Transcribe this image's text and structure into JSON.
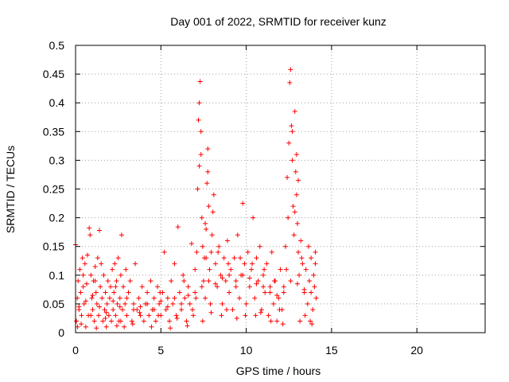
{
  "chart_data": {
    "type": "scatter",
    "title": "Day 001 of 2022, SRMTID for receiver kunz",
    "xlabel": "GPS time / hours",
    "ylabel": "SRMTID / TECUs",
    "xlim": [
      0,
      24
    ],
    "ylim": [
      0,
      0.5
    ],
    "xticks": [
      0,
      5,
      10,
      15,
      20
    ],
    "xtick_labels": [
      "0",
      "5",
      "10",
      "15",
      "20"
    ],
    "yticks": [
      0,
      0.05,
      0.1,
      0.15,
      0.2,
      0.25,
      0.3,
      0.35,
      0.4,
      0.45,
      0.5
    ],
    "ytick_labels": [
      "0",
      "0.05",
      "0.1",
      "0.15",
      "0.2",
      "0.25",
      "0.3",
      "0.35",
      "0.4",
      "0.45",
      "0.5"
    ],
    "grid": true,
    "marker": "+",
    "color": "#ff0000",
    "series": [
      {
        "name": "SRMTID",
        "points": [
          [
            0.0,
            0.153
          ],
          [
            0.05,
            0.02
          ],
          [
            0.1,
            0.06
          ],
          [
            0.15,
            0.09
          ],
          [
            0.2,
            0.04
          ],
          [
            0.25,
            0.11
          ],
          [
            0.3,
            0.07
          ],
          [
            0.35,
            0.03
          ],
          [
            0.4,
            0.13
          ],
          [
            0.45,
            0.08
          ],
          [
            0.5,
            0.05
          ],
          [
            0.55,
            0.12
          ],
          [
            0.6,
            0.01
          ],
          [
            0.65,
            0.085
          ],
          [
            0.7,
            0.135
          ],
          [
            0.75,
            0.03
          ],
          [
            0.8,
            0.182
          ],
          [
            0.85,
            0.17
          ],
          [
            0.9,
            0.1
          ],
          [
            0.95,
            0.06
          ],
          [
            1.0,
            0.04
          ],
          [
            1.05,
            0.09
          ],
          [
            1.1,
            0.02
          ],
          [
            1.15,
            0.115
          ],
          [
            1.2,
            0.07
          ],
          [
            1.25,
            0.05
          ],
          [
            1.3,
            0.13
          ],
          [
            1.35,
            0.03
          ],
          [
            1.4,
            0.178
          ],
          [
            1.45,
            0.08
          ],
          [
            1.5,
            0.12
          ],
          [
            1.55,
            0.06
          ],
          [
            1.6,
            0.02
          ],
          [
            1.65,
            0.1
          ],
          [
            1.7,
            0.04
          ],
          [
            1.75,
            0.07
          ],
          [
            1.8,
            0.01
          ],
          [
            1.85,
            0.05
          ],
          [
            1.9,
            0.09
          ],
          [
            1.95,
            0.03
          ],
          [
            2.0,
            0.06
          ],
          [
            2.05,
            0.08
          ],
          [
            2.1,
            0.02
          ],
          [
            2.15,
            0.11
          ],
          [
            2.2,
            0.04
          ],
          [
            2.25,
            0.07
          ],
          [
            2.3,
            0.12
          ],
          [
            2.35,
            0.03
          ],
          [
            2.4,
            0.09
          ],
          [
            2.45,
            0.05
          ],
          [
            2.5,
            0.13
          ],
          [
            2.55,
            0.02
          ],
          [
            2.6,
            0.06
          ],
          [
            2.65,
            0.1
          ],
          [
            2.7,
            0.17
          ],
          [
            2.75,
            0.04
          ],
          [
            2.8,
            0.08
          ],
          [
            2.85,
            0.01
          ],
          [
            2.9,
            0.05
          ],
          [
            2.95,
            0.11
          ],
          [
            3.0,
            0.03
          ],
          [
            3.1,
            0.07
          ],
          [
            3.2,
            0.09
          ],
          [
            3.3,
            0.02
          ],
          [
            3.4,
            0.05
          ],
          [
            3.5,
            0.12
          ],
          [
            3.6,
            0.04
          ],
          [
            3.7,
            0.06
          ],
          [
            3.8,
            0.03
          ],
          [
            3.9,
            0.08
          ],
          [
            4.0,
            0.02
          ],
          [
            4.1,
            0.05
          ],
          [
            4.2,
            0.07
          ],
          [
            4.3,
            0.03
          ],
          [
            4.4,
            0.09
          ],
          [
            4.5,
            0.04
          ],
          [
            4.6,
            0.06
          ],
          [
            4.7,
            0.02
          ],
          [
            4.8,
            0.08
          ],
          [
            4.9,
            0.05
          ],
          [
            5.0,
            0.03
          ],
          [
            5.1,
            0.07
          ],
          [
            5.2,
            0.14
          ],
          [
            5.3,
            0.04
          ],
          [
            5.4,
            0.06
          ],
          [
            5.5,
            0.02
          ],
          [
            5.6,
            0.09
          ],
          [
            5.7,
            0.05
          ],
          [
            5.8,
            0.12
          ],
          [
            5.9,
            0.03
          ],
          [
            6.0,
            0.184
          ],
          [
            6.1,
            0.07
          ],
          [
            6.2,
            0.04
          ],
          [
            6.3,
            0.1
          ],
          [
            6.4,
            0.06
          ],
          [
            6.5,
            0.02
          ],
          [
            6.6,
            0.08
          ],
          [
            6.7,
            0.05
          ],
          [
            6.8,
            0.155
          ],
          [
            6.9,
            0.03
          ],
          [
            7.0,
            0.11
          ],
          [
            7.05,
            0.06
          ],
          [
            7.1,
            0.14
          ],
          [
            7.15,
            0.25
          ],
          [
            7.2,
            0.37
          ],
          [
            7.25,
            0.4
          ],
          [
            7.3,
            0.437
          ],
          [
            7.35,
            0.31
          ],
          [
            7.4,
            0.2
          ],
          [
            7.45,
            0.15
          ],
          [
            7.5,
            0.09
          ],
          [
            7.55,
            0.13
          ],
          [
            7.6,
            0.06
          ],
          [
            7.65,
            0.18
          ],
          [
            7.7,
            0.26
          ],
          [
            7.75,
            0.32
          ],
          [
            7.8,
            0.22
          ],
          [
            7.85,
            0.11
          ],
          [
            7.9,
            0.05
          ],
          [
            7.95,
            0.14
          ],
          [
            8.0,
            0.17
          ],
          [
            8.05,
            0.21
          ],
          [
            8.1,
            0.24
          ],
          [
            8.2,
            0.12
          ],
          [
            8.3,
            0.08
          ],
          [
            8.4,
            0.15
          ],
          [
            8.5,
            0.1
          ],
          [
            8.6,
            0.05
          ],
          [
            8.7,
            0.13
          ],
          [
            8.8,
            0.09
          ],
          [
            8.9,
            0.16
          ],
          [
            9.0,
            0.07
          ],
          [
            9.1,
            0.11
          ],
          [
            9.2,
            0.04
          ],
          [
            9.3,
            0.13
          ],
          [
            9.4,
            0.08
          ],
          [
            9.5,
            0.17
          ],
          [
            9.6,
            0.06
          ],
          [
            9.7,
            0.1
          ],
          [
            9.8,
            0.225
          ],
          [
            9.9,
            0.12
          ],
          [
            10.0,
            0.05
          ],
          [
            10.1,
            0.14
          ],
          [
            10.2,
            0.08
          ],
          [
            10.3,
            0.11
          ],
          [
            10.4,
            0.2
          ],
          [
            10.5,
            0.06
          ],
          [
            10.6,
            0.13
          ],
          [
            10.7,
            0.09
          ],
          [
            10.8,
            0.15
          ],
          [
            10.9,
            0.04
          ],
          [
            11.0,
            0.1
          ],
          [
            11.1,
            0.07
          ],
          [
            11.2,
            0.12
          ],
          [
            11.3,
            0.03
          ],
          [
            11.4,
            0.08
          ],
          [
            11.5,
            0.14
          ],
          [
            11.6,
            0.05
          ],
          [
            11.7,
            0.09
          ],
          [
            11.8,
            0.02
          ],
          [
            11.9,
            0.06
          ],
          [
            12.0,
            0.11
          ],
          [
            12.1,
            0.04
          ],
          [
            12.2,
            0.08
          ],
          [
            12.3,
            0.15
          ],
          [
            12.4,
            0.27
          ],
          [
            12.5,
            0.33
          ],
          [
            12.55,
            0.435
          ],
          [
            12.6,
            0.458
          ],
          [
            12.65,
            0.36
          ],
          [
            12.7,
            0.3
          ],
          [
            12.75,
            0.22
          ],
          [
            12.8,
            0.17
          ],
          [
            12.85,
            0.385
          ],
          [
            12.9,
            0.28
          ],
          [
            12.95,
            0.24
          ],
          [
            13.0,
            0.19
          ],
          [
            13.05,
            0.14
          ],
          [
            13.1,
            0.1
          ],
          [
            13.2,
            0.16
          ],
          [
            13.3,
            0.12
          ],
          [
            13.4,
            0.07
          ],
          [
            13.5,
            0.11
          ],
          [
            13.6,
            0.05
          ],
          [
            13.7,
            0.09
          ],
          [
            13.8,
            0.13
          ],
          [
            13.9,
            0.04
          ],
          [
            14.0,
            0.08
          ],
          [
            14.05,
            0.14
          ],
          [
            14.1,
            0.06
          ],
          [
            13.45,
            0.03
          ],
          [
            13.75,
            0.02
          ],
          [
            13.95,
            0.1
          ],
          [
            0.12,
            0.01
          ],
          [
            0.33,
            0.015
          ],
          [
            1.22,
            0.008
          ],
          [
            2.42,
            0.012
          ],
          [
            3.35,
            0.015
          ],
          [
            4.45,
            0.01
          ],
          [
            5.55,
            0.008
          ],
          [
            6.55,
            0.012
          ],
          [
            7.45,
            0.02
          ],
          [
            8.55,
            0.03
          ],
          [
            9.45,
            0.025
          ],
          [
            10.55,
            0.03
          ],
          [
            11.45,
            0.02
          ],
          [
            12.15,
            0.015
          ],
          [
            13.15,
            0.02
          ],
          [
            13.85,
            0.015
          ],
          [
            0.9,
            0.03
          ],
          [
            1.75,
            0.025
          ],
          [
            2.65,
            0.02
          ],
          [
            3.75,
            0.035
          ],
          [
            4.85,
            0.03
          ],
          [
            5.95,
            0.025
          ],
          [
            6.85,
            0.04
          ],
          [
            7.95,
            0.035
          ],
          [
            8.85,
            0.04
          ],
          [
            9.95,
            0.03
          ],
          [
            10.85,
            0.035
          ],
          [
            11.95,
            0.04
          ],
          [
            0.2,
            0.045
          ],
          [
            0.6,
            0.055
          ],
          [
            1.0,
            0.065
          ],
          [
            1.4,
            0.045
          ],
          [
            1.8,
            0.035
          ],
          [
            2.2,
            0.055
          ],
          [
            2.6,
            0.045
          ],
          [
            3.0,
            0.06
          ],
          [
            3.4,
            0.04
          ],
          [
            3.8,
            0.045
          ],
          [
            4.2,
            0.05
          ],
          [
            4.6,
            0.04
          ],
          [
            5.0,
            0.055
          ],
          [
            5.4,
            0.045
          ],
          [
            5.8,
            0.06
          ],
          [
            6.2,
            0.05
          ],
          [
            6.6,
            0.065
          ],
          [
            7.0,
            0.07
          ],
          [
            7.4,
            0.08
          ],
          [
            7.8,
            0.09
          ],
          [
            8.2,
            0.085
          ],
          [
            8.6,
            0.095
          ],
          [
            9.0,
            0.1
          ],
          [
            9.4,
            0.09
          ],
          [
            9.8,
            0.1
          ],
          [
            10.2,
            0.095
          ],
          [
            10.6,
            0.085
          ],
          [
            11.0,
            0.08
          ],
          [
            11.4,
            0.07
          ],
          [
            11.8,
            0.065
          ],
          [
            12.2,
            0.07
          ],
          [
            12.6,
            0.09
          ],
          [
            13.0,
            0.085
          ],
          [
            13.4,
            0.075
          ],
          [
            13.8,
            0.07
          ],
          [
            14.05,
            0.12
          ],
          [
            0.45,
            0.1
          ],
          [
            1.15,
            0.09
          ],
          [
            2.35,
            0.08
          ],
          [
            4.95,
            0.07
          ],
          [
            6.35,
            0.09
          ],
          [
            7.65,
            0.13
          ],
          [
            8.35,
            0.14
          ],
          [
            8.95,
            0.12
          ],
          [
            9.65,
            0.13
          ],
          [
            10.35,
            0.12
          ],
          [
            11.05,
            0.11
          ],
          [
            11.65,
            0.09
          ],
          [
            12.35,
            0.11
          ],
          [
            13.25,
            0.13
          ],
          [
            13.65,
            0.15
          ],
          [
            7.25,
            0.29
          ],
          [
            7.35,
            0.35
          ],
          [
            12.7,
            0.35
          ],
          [
            12.95,
            0.31
          ],
          [
            13.05,
            0.265
          ],
          [
            7.75,
            0.28
          ],
          [
            7.6,
            0.19
          ],
          [
            12.45,
            0.2
          ],
          [
            12.85,
            0.21
          ]
        ]
      }
    ]
  }
}
